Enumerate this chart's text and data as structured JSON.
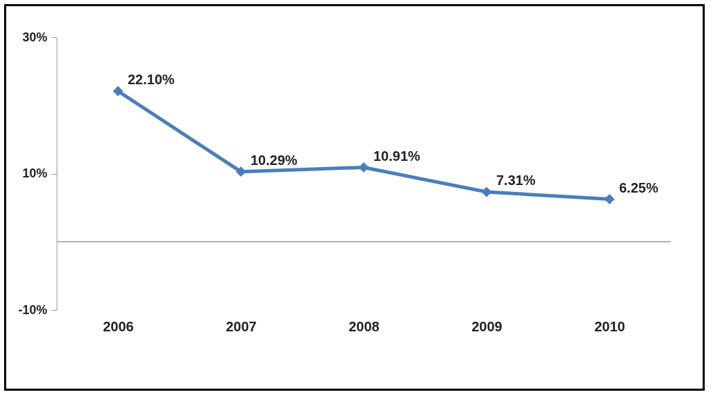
{
  "chart_data": {
    "type": "line",
    "categories": [
      "2006",
      "2007",
      "2008",
      "2009",
      "2010"
    ],
    "series": [
      {
        "color": "#4a7ebb",
        "values": [
          22.1,
          10.29,
          10.91,
          7.31,
          6.25
        ],
        "value_labels": [
          "22.10%",
          "10.29%",
          "10.91%",
          "7.31%",
          "6.25%"
        ]
      }
    ],
    "ylim": [
      -10,
      30
    ],
    "yticks": [
      {
        "value": -10,
        "label": "-10%"
      },
      {
        "value": 10,
        "label": "10%"
      },
      {
        "value": 30,
        "label": "30%"
      }
    ],
    "ref_lines": [
      {
        "axis": "y",
        "value": 0,
        "color": "#999999"
      }
    ],
    "marker": "diamond",
    "line_style": "solid"
  }
}
